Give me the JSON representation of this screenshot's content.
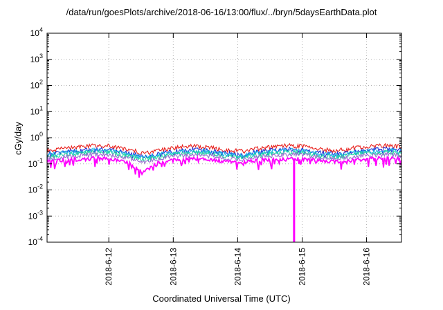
{
  "chart_data": {
    "type": "line",
    "title": "/data/run/goesPlots/archive/2018-06-16/13:00/flux/../bryn/5daysEarthData.plot",
    "xlabel": "Coordinated Universal Time (UTC)",
    "ylabel": "cGy/day",
    "yscale": "log",
    "ylim": [
      0.0001,
      10000
    ],
    "y_ticks": [
      {
        "value": 0.0001,
        "base": "10",
        "exp": "-4"
      },
      {
        "value": 0.001,
        "base": "10",
        "exp": "-3"
      },
      {
        "value": 0.01,
        "base": "10",
        "exp": "-2"
      },
      {
        "value": 0.1,
        "base": "10",
        "exp": "-1"
      },
      {
        "value": 1,
        "base": "10",
        "exp": "0"
      },
      {
        "value": 10,
        "base": "10",
        "exp": "1"
      },
      {
        "value": 100,
        "base": "10",
        "exp": "2"
      },
      {
        "value": 1000,
        "base": "10",
        "exp": "3"
      },
      {
        "value": 10000,
        "base": "10",
        "exp": "4"
      }
    ],
    "xlim": [
      "2018-06-11 01:00",
      "2018-06-16 13:00"
    ],
    "x_ticks": [
      "2018-6-12",
      "2018-6-13",
      "2018-6-14",
      "2018-6-15",
      "2018-6-16"
    ],
    "grid": true,
    "x_hours": [
      0,
      6,
      12,
      18,
      24,
      30,
      36,
      42,
      48,
      54,
      60,
      66,
      72,
      78,
      84,
      90,
      96,
      102,
      108,
      114,
      120,
      126,
      132
    ],
    "series": [
      {
        "color": "#e8201c",
        "values": [
          0.33,
          0.38,
          0.45,
          0.5,
          0.48,
          0.36,
          0.25,
          0.33,
          0.42,
          0.48,
          0.46,
          0.36,
          0.3,
          0.38,
          0.45,
          0.5,
          0.47,
          0.35,
          0.32,
          0.4,
          0.46,
          0.5,
          0.45
        ]
      },
      {
        "color": "#2030d8",
        "values": [
          0.25,
          0.29,
          0.34,
          0.38,
          0.36,
          0.27,
          0.19,
          0.25,
          0.32,
          0.36,
          0.35,
          0.27,
          0.23,
          0.29,
          0.34,
          0.38,
          0.35,
          0.27,
          0.24,
          0.3,
          0.35,
          0.38,
          0.34
        ]
      },
      {
        "color": "#19b5e6",
        "values": [
          0.22,
          0.26,
          0.3,
          0.34,
          0.32,
          0.24,
          0.17,
          0.22,
          0.28,
          0.32,
          0.31,
          0.24,
          0.2,
          0.26,
          0.3,
          0.34,
          0.31,
          0.24,
          0.21,
          0.27,
          0.31,
          0.34,
          0.3
        ]
      },
      {
        "color": "#1fd8a0",
        "values": [
          0.19,
          0.22,
          0.25,
          0.28,
          0.27,
          0.2,
          0.15,
          0.19,
          0.24,
          0.27,
          0.26,
          0.2,
          0.17,
          0.22,
          0.25,
          0.28,
          0.26,
          0.2,
          0.18,
          0.23,
          0.26,
          0.28,
          0.25
        ]
      },
      {
        "color": "#9a6fd0",
        "values": [
          0.16,
          0.18,
          0.21,
          0.23,
          0.22,
          0.17,
          0.12,
          0.16,
          0.2,
          0.22,
          0.21,
          0.17,
          0.14,
          0.18,
          0.21,
          0.23,
          0.22,
          0.17,
          0.15,
          0.19,
          0.21,
          0.23,
          0.21
        ]
      },
      {
        "color": "#ff00ff",
        "values": [
          0.13,
          0.14,
          0.16,
          0.17,
          0.16,
          0.12,
          0.05,
          0.12,
          0.15,
          0.16,
          0.16,
          0.13,
          0.11,
          0.14,
          0.15,
          0.16,
          0.16,
          0.13,
          0.12,
          0.14,
          0.16,
          0.17,
          0.16
        ]
      }
    ],
    "annotations": [
      {
        "series_color": "#ff00ff",
        "x_hour": 92,
        "value": 0.0001,
        "note": "dropout"
      }
    ]
  }
}
